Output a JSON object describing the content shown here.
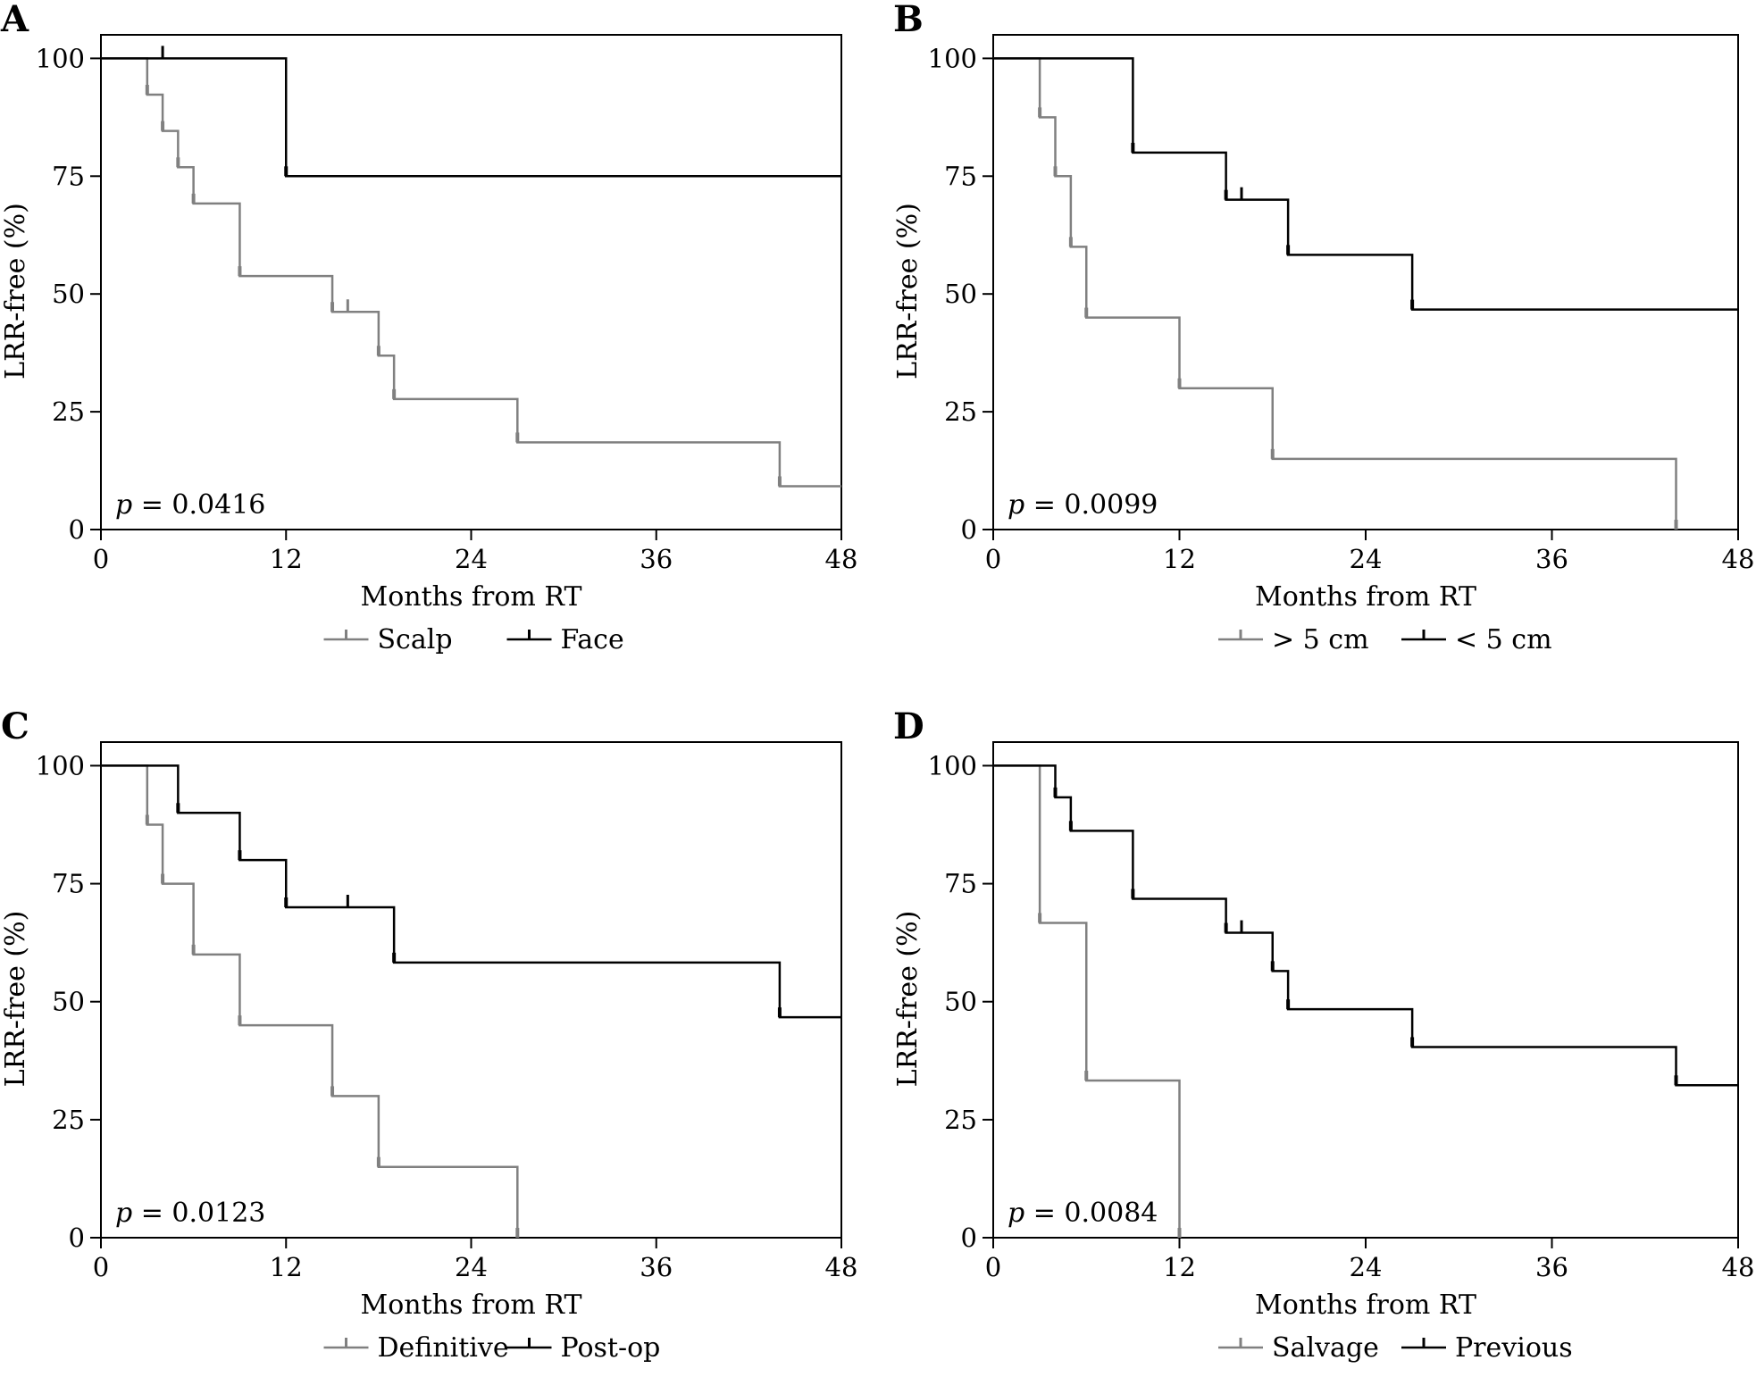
{
  "colors": {
    "group1": "#808080",
    "group2": "#000000",
    "axis": "#000000"
  },
  "chart_data": [
    {
      "type": "line",
      "step": true,
      "panel": "A",
      "xlabel": "Months from RT",
      "ylabel": "LRR-free (%)",
      "xlim": [
        0,
        48
      ],
      "ylim": [
        0,
        105
      ],
      "xticks": [
        0,
        12,
        24,
        36,
        48
      ],
      "yticks": [
        0,
        25,
        50,
        75,
        100
      ],
      "annotation": {
        "italic": "p",
        "text": " = 0.0416"
      },
      "legend": "bottom",
      "series": [
        {
          "name": "Scalp",
          "color": "#808080",
          "times": [
            0,
            3,
            4,
            5,
            6,
            9,
            15,
            18,
            19,
            27,
            44
          ],
          "values": [
            100,
            92.3,
            84.6,
            76.9,
            69.2,
            53.8,
            46.2,
            36.9,
            27.7,
            18.5,
            9.2
          ],
          "end": 48,
          "censored": [
            16
          ]
        },
        {
          "name": "Face",
          "color": "#000000",
          "times": [
            0,
            12
          ],
          "values": [
            100,
            75
          ],
          "end": 48,
          "censored": [
            4
          ]
        }
      ]
    },
    {
      "type": "line",
      "step": true,
      "panel": "B",
      "xlabel": "Months from RT",
      "ylabel": "LRR-free (%)",
      "xlim": [
        0,
        48
      ],
      "ylim": [
        0,
        105
      ],
      "xticks": [
        0,
        12,
        24,
        36,
        48
      ],
      "yticks": [
        0,
        25,
        50,
        75,
        100
      ],
      "annotation": {
        "italic": "p",
        "text": " = 0.0099"
      },
      "legend": "bottom",
      "series": [
        {
          "name": "> 5 cm",
          "color": "#808080",
          "times": [
            0,
            3,
            4,
            5,
            6,
            12,
            18,
            44
          ],
          "values": [
            100,
            87.5,
            75,
            60,
            45,
            30,
            15,
            0
          ],
          "end": 44,
          "censored": []
        },
        {
          "name": "< 5 cm",
          "color": "#000000",
          "times": [
            0,
            9,
            15,
            19,
            27
          ],
          "values": [
            100,
            80,
            70,
            58.3,
            46.7
          ],
          "end": 48,
          "censored": [
            16
          ]
        }
      ]
    },
    {
      "type": "line",
      "step": true,
      "panel": "C",
      "xlabel": "Months from RT",
      "ylabel": "LRR-free (%)",
      "xlim": [
        0,
        48
      ],
      "ylim": [
        0,
        105
      ],
      "xticks": [
        0,
        12,
        24,
        36,
        48
      ],
      "yticks": [
        0,
        25,
        50,
        75,
        100
      ],
      "annotation": {
        "italic": "p",
        "text": " = 0.0123"
      },
      "legend": "bottom",
      "series": [
        {
          "name": "Definitive",
          "color": "#808080",
          "times": [
            0,
            3,
            4,
            6,
            9,
            15,
            18,
            27
          ],
          "values": [
            100,
            87.5,
            75,
            60,
            45,
            30,
            15,
            0
          ],
          "end": 27,
          "censored": []
        },
        {
          "name": "Post-op",
          "color": "#000000",
          "times": [
            0,
            5,
            9,
            12,
            19,
            44
          ],
          "values": [
            100,
            90,
            80,
            70,
            58.3,
            46.7
          ],
          "end": 48,
          "censored": [
            16
          ]
        }
      ]
    },
    {
      "type": "line",
      "step": true,
      "panel": "D",
      "xlabel": "Months from RT",
      "ylabel": "LRR-free (%)",
      "xlim": [
        0,
        48
      ],
      "ylim": [
        0,
        105
      ],
      "xticks": [
        0,
        12,
        24,
        36,
        48
      ],
      "yticks": [
        0,
        25,
        50,
        75,
        100
      ],
      "annotation": {
        "italic": "p",
        "text": " = 0.0084"
      },
      "legend": "bottom",
      "series": [
        {
          "name": "Salvage",
          "color": "#808080",
          "times": [
            0,
            3,
            6,
            12
          ],
          "values": [
            100,
            66.7,
            33.3,
            0
          ],
          "end": 12,
          "censored": []
        },
        {
          "name": "Previous",
          "color": "#000000",
          "times": [
            0,
            4,
            5,
            9,
            15,
            18,
            19,
            27,
            44
          ],
          "values": [
            100,
            93.3,
            86.2,
            71.8,
            64.6,
            56.5,
            48.4,
            40.4,
            32.3
          ],
          "end": 48,
          "censored": [
            16
          ]
        }
      ]
    }
  ]
}
